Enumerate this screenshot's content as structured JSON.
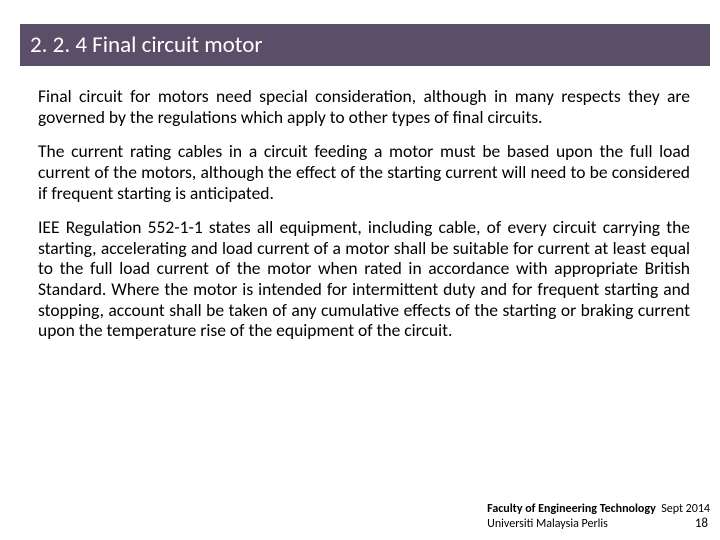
{
  "title_bar": {
    "background_color": "#5a4e68",
    "text_color": "#ffffff",
    "text": "2. 2. 4  Final circuit motor",
    "fontsize": 23
  },
  "body": {
    "text_color": "#000000",
    "fontsize": 17.5,
    "paragraphs": [
      "Final circuit for motors need special consideration, although in many respects they are governed by the regulations which apply to other types of final circuits.",
      "The current rating cables in a circuit feeding a motor must be based upon the full load current of the motors, although the effect of the starting current will need to be considered if frequent starting is anticipated.",
      "IEE Regulation 552-1-1 states all equipment, including cable, of every circuit carrying the starting, accelerating and load current of a motor shall be suitable for current at least equal to the full load current of the motor when rated in accordance with appropriate British Standard. Where the motor is intended for intermittent duty and for frequent starting and stopping, account shall be taken of any cumulative effects of the starting or braking current upon the temperature rise of the equipment of the circuit."
    ]
  },
  "footer": {
    "faculty_label": "Faculty of Engineering Technology",
    "date": "Sept 2014",
    "university": "Universiti Malaysia Perlis",
    "page_number": "18",
    "fontsize": 12
  }
}
